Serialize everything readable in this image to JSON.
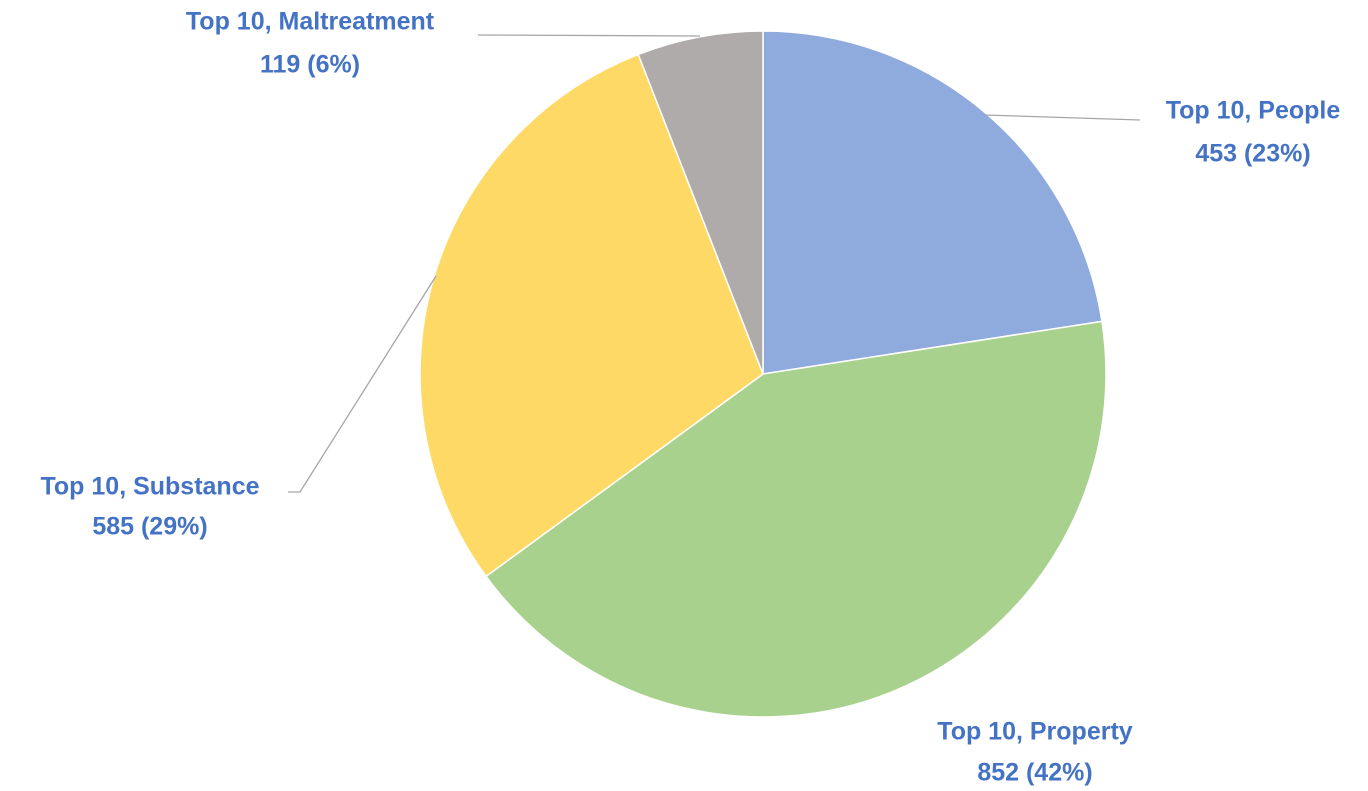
{
  "chart_data": {
    "type": "pie",
    "categories": [
      "Top 10, People",
      "Top 10, Property",
      "Top 10, Substance",
      "Top 10, Maltreatment"
    ],
    "values": [
      453,
      852,
      585,
      119
    ],
    "value_labels": [
      "453 (23%)",
      "852 (42%)",
      "585 (29%)",
      "119 (6%)"
    ],
    "colors": [
      "#8faadc",
      "#a9d18e",
      "#ffd966",
      "#afabab"
    ]
  }
}
